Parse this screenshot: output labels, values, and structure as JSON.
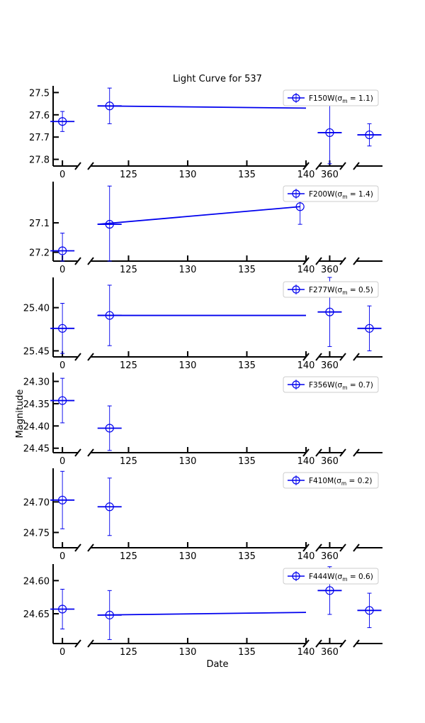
{
  "colors": {
    "series": "#0000ee",
    "axis": "#000000"
  },
  "chart_data": {
    "type": "scatter",
    "title": "Light Curve for 537",
    "xlabel": "Date",
    "ylabel": "Magnitude",
    "y_inverted": true,
    "x_segments": [
      {
        "range": [
          -3,
          5
        ],
        "ticks": [
          0
        ],
        "tick_labels": [
          "0"
        ]
      },
      {
        "range": [
          121.8,
          140
        ],
        "ticks": [
          125,
          130,
          135,
          140
        ],
        "tick_labels": [
          "125",
          "130",
          "135",
          "140"
        ]
      },
      {
        "range": [
          355,
          366
        ],
        "ticks": [
          360
        ],
        "tick_labels": [
          "360"
        ]
      },
      {
        "range": [
          400,
          410
        ],
        "ticks": [],
        "tick_labels": []
      }
    ],
    "legend_position": "top-right",
    "grid": false,
    "panels": [
      {
        "legend": "F150W(σ_m = 1.1)",
        "legend_band": "F150W",
        "legend_sigma": "1.1",
        "ylim": [
          27.83,
          27.47
        ],
        "yticks": [
          27.5,
          27.6,
          27.7,
          27.8
        ],
        "ytick_labels": [
          "27.5",
          "27.6",
          "27.7",
          "27.8"
        ],
        "points": [
          {
            "x": 0,
            "y": 27.63,
            "yerr": 0.045,
            "xerr": 1.0
          },
          {
            "x": 123.4,
            "y": 27.56,
            "yerr": 0.08,
            "xerr": 1.0,
            "line_to": {
              "x": 140,
              "y": 27.57
            }
          },
          {
            "x": 360,
            "y": 27.68,
            "yerr": 0.14,
            "xerr": 1.0
          },
          {
            "x": 405,
            "y": 27.69,
            "yerr": 0.05,
            "xerr": 1.0
          }
        ]
      },
      {
        "legend": "F200W(σ_m = 1.4)",
        "legend_band": "F200W",
        "legend_sigma": "1.4",
        "ylim": [
          27.23,
          26.96
        ],
        "yticks": [
          27.1,
          27.2
        ],
        "ytick_labels": [
          "27.1",
          "27.2"
        ],
        "points": [
          {
            "x": 0,
            "y": 27.195,
            "yerr": 0.06,
            "xerr": 1.0
          },
          {
            "x": 123.4,
            "y": 27.105,
            "yerr": 0.13,
            "xerr": 1.0,
            "line_to": {
              "x": 139.5,
              "y": 27.045
            }
          },
          {
            "x": 139.5,
            "y": 27.045,
            "yerr": 0.06,
            "xerr": 0
          }
        ]
      },
      {
        "legend": "F277W(σ_m = 0.5)",
        "legend_band": "F277W",
        "legend_sigma": "0.5",
        "ylim": [
          25.457,
          25.365
        ],
        "yticks": [
          25.4,
          25.45
        ],
        "ytick_labels": [
          "25.40",
          "25.45"
        ],
        "points": [
          {
            "x": 0,
            "y": 25.424,
            "yerr": 0.029,
            "xerr": 1.0
          },
          {
            "x": 123.4,
            "y": 25.409,
            "yerr": 0.035,
            "xerr": 1.0,
            "line_to": {
              "x": 140,
              "y": 25.409
            }
          },
          {
            "x": 360,
            "y": 25.405,
            "yerr": 0.04,
            "xerr": 1.0
          },
          {
            "x": 405,
            "y": 25.424,
            "yerr": 0.026,
            "xerr": 1.0
          }
        ]
      },
      {
        "legend": "F356W(σ_m = 0.7)",
        "legend_band": "F356W",
        "legend_sigma": "0.7",
        "ylim": [
          24.46,
          24.28
        ],
        "yticks": [
          24.3,
          24.35,
          24.4,
          24.45
        ],
        "ytick_labels": [
          "24.30",
          "24.35",
          "24.40",
          "24.45"
        ],
        "points": [
          {
            "x": 0,
            "y": 24.343,
            "yerr": 0.05,
            "xerr": 1.0
          },
          {
            "x": 123.4,
            "y": 24.405,
            "yerr": 0.05,
            "xerr": 1.0
          }
        ]
      },
      {
        "legend": "F410M(σ_m = 0.2)",
        "legend_band": "F410M",
        "legend_sigma": "0.2",
        "ylim": [
          24.775,
          24.645
        ],
        "yticks": [
          24.7,
          24.75
        ],
        "ytick_labels": [
          "24.70",
          "24.75"
        ],
        "points": [
          {
            "x": 0,
            "y": 24.697,
            "yerr": 0.047,
            "xerr": 1.0
          },
          {
            "x": 123.4,
            "y": 24.708,
            "yerr": 0.047,
            "xerr": 1.0
          }
        ]
      },
      {
        "legend": "F444W(σ_m = 0.6)",
        "legend_band": "F444W",
        "legend_sigma": "0.6",
        "ylim": [
          24.695,
          24.575
        ],
        "yticks": [
          24.6,
          24.65
        ],
        "ytick_labels": [
          "24.60",
          "24.65"
        ],
        "points": [
          {
            "x": 0,
            "y": 24.643,
            "yerr": 0.03,
            "xerr": 1.0
          },
          {
            "x": 123.4,
            "y": 24.652,
            "yerr": 0.037,
            "xerr": 1.0,
            "line_to": {
              "x": 140,
              "y": 24.648
            }
          },
          {
            "x": 360,
            "y": 24.615,
            "yerr": 0.036,
            "xerr": 1.0
          },
          {
            "x": 405,
            "y": 24.645,
            "yerr": 0.026,
            "xerr": 1.0
          }
        ]
      }
    ]
  }
}
